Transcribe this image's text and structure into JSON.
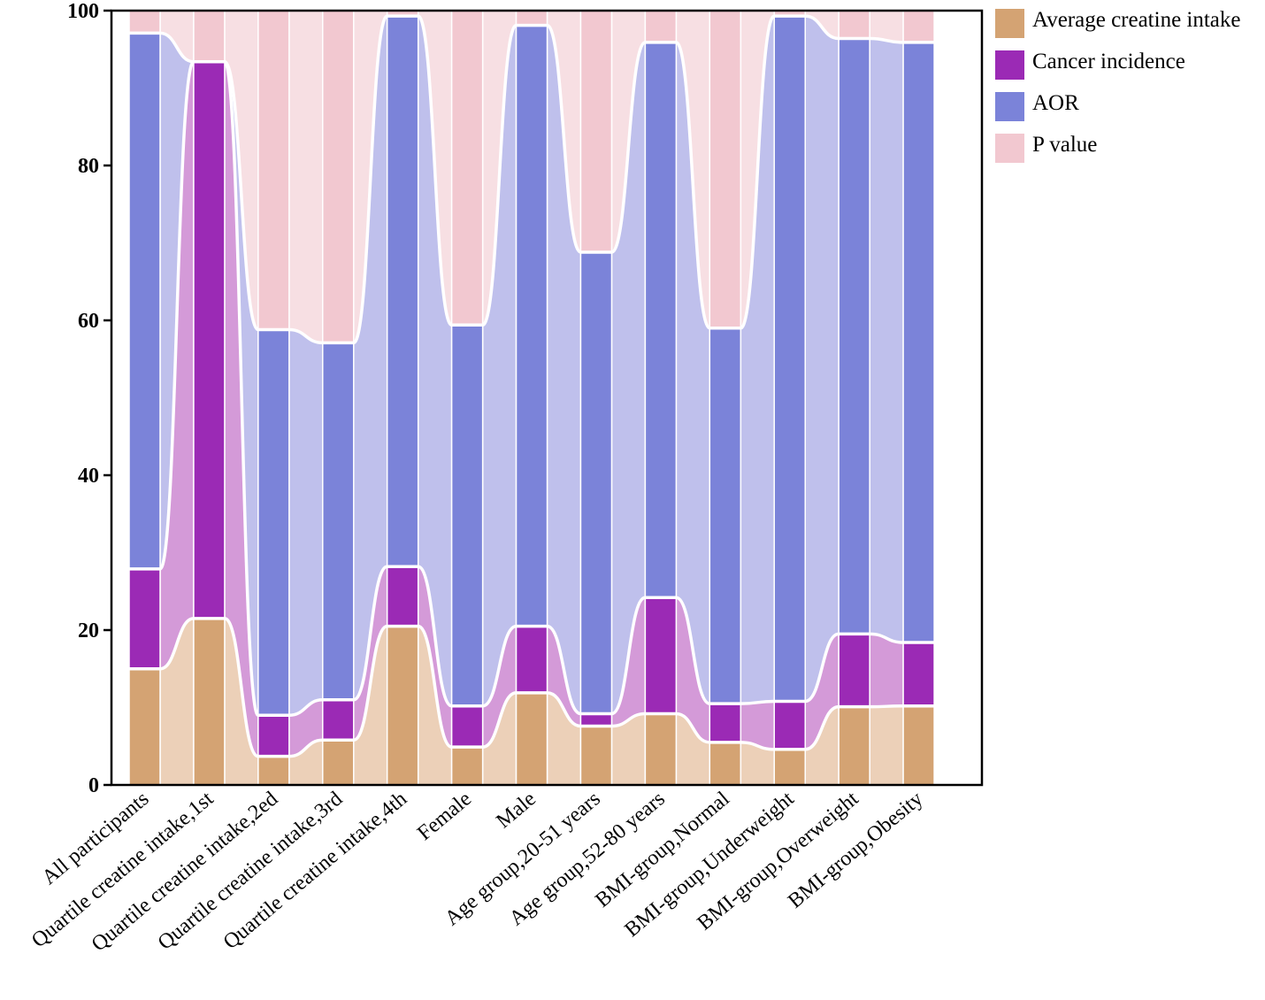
{
  "chart_data": {
    "type": "bar",
    "subtype": "stacked-percent-alluvial",
    "title": "",
    "xlabel": "",
    "ylabel": "",
    "ylim": [
      0,
      100
    ],
    "yticks": [
      "0",
      "20",
      "40",
      "60",
      "80",
      "100"
    ],
    "grid": false,
    "legend_position": "top-right",
    "categories": [
      "All participants",
      "Quartile creatine intake,1st",
      "Quartile creatine intake,2ed",
      "Quartile creatine intake,3rd",
      "Quartile creatine intake,4th",
      "Female",
      "Male",
      "Age group,20-51 years",
      "Age group,52-80 years",
      "BMI-group,Normal",
      "BMI-group,Underweight",
      "BMI-group,Overweight",
      "BMI-group,Obesity"
    ],
    "series": [
      {
        "name": "Average creatine intake",
        "color": "#d4a373",
        "flow_color": "#ecd0b8",
        "values": [
          15,
          21.5,
          3.7,
          5.8,
          20.5,
          4.9,
          11.9,
          7.6,
          9.2,
          5.5,
          4.6,
          10.1,
          10.2
        ]
      },
      {
        "name": "Cancer incidence",
        "color": "#9b2ab5",
        "flow_color": "#d49ad8",
        "values": [
          12.9,
          71.9,
          5.3,
          5.2,
          7.7,
          5.3,
          8.6,
          1.6,
          15,
          5,
          6.2,
          9.4,
          8.2
        ]
      },
      {
        "name": "AOR",
        "color": "#7b83d9",
        "flow_color": "#bfc0ec",
        "values": [
          69.2,
          0,
          49.8,
          46.1,
          71.1,
          49.2,
          77.6,
          59.6,
          71.7,
          48.5,
          88.5,
          76.9,
          77.5
        ]
      },
      {
        "name": "P value",
        "color": "#f2c8d0",
        "flow_color": "#f7dfe3",
        "values": [
          2.9,
          6.6,
          41.2,
          42.9,
          0.7,
          40.6,
          1.9,
          31.2,
          4.1,
          41,
          0.7,
          3.6,
          4.1
        ]
      }
    ]
  }
}
